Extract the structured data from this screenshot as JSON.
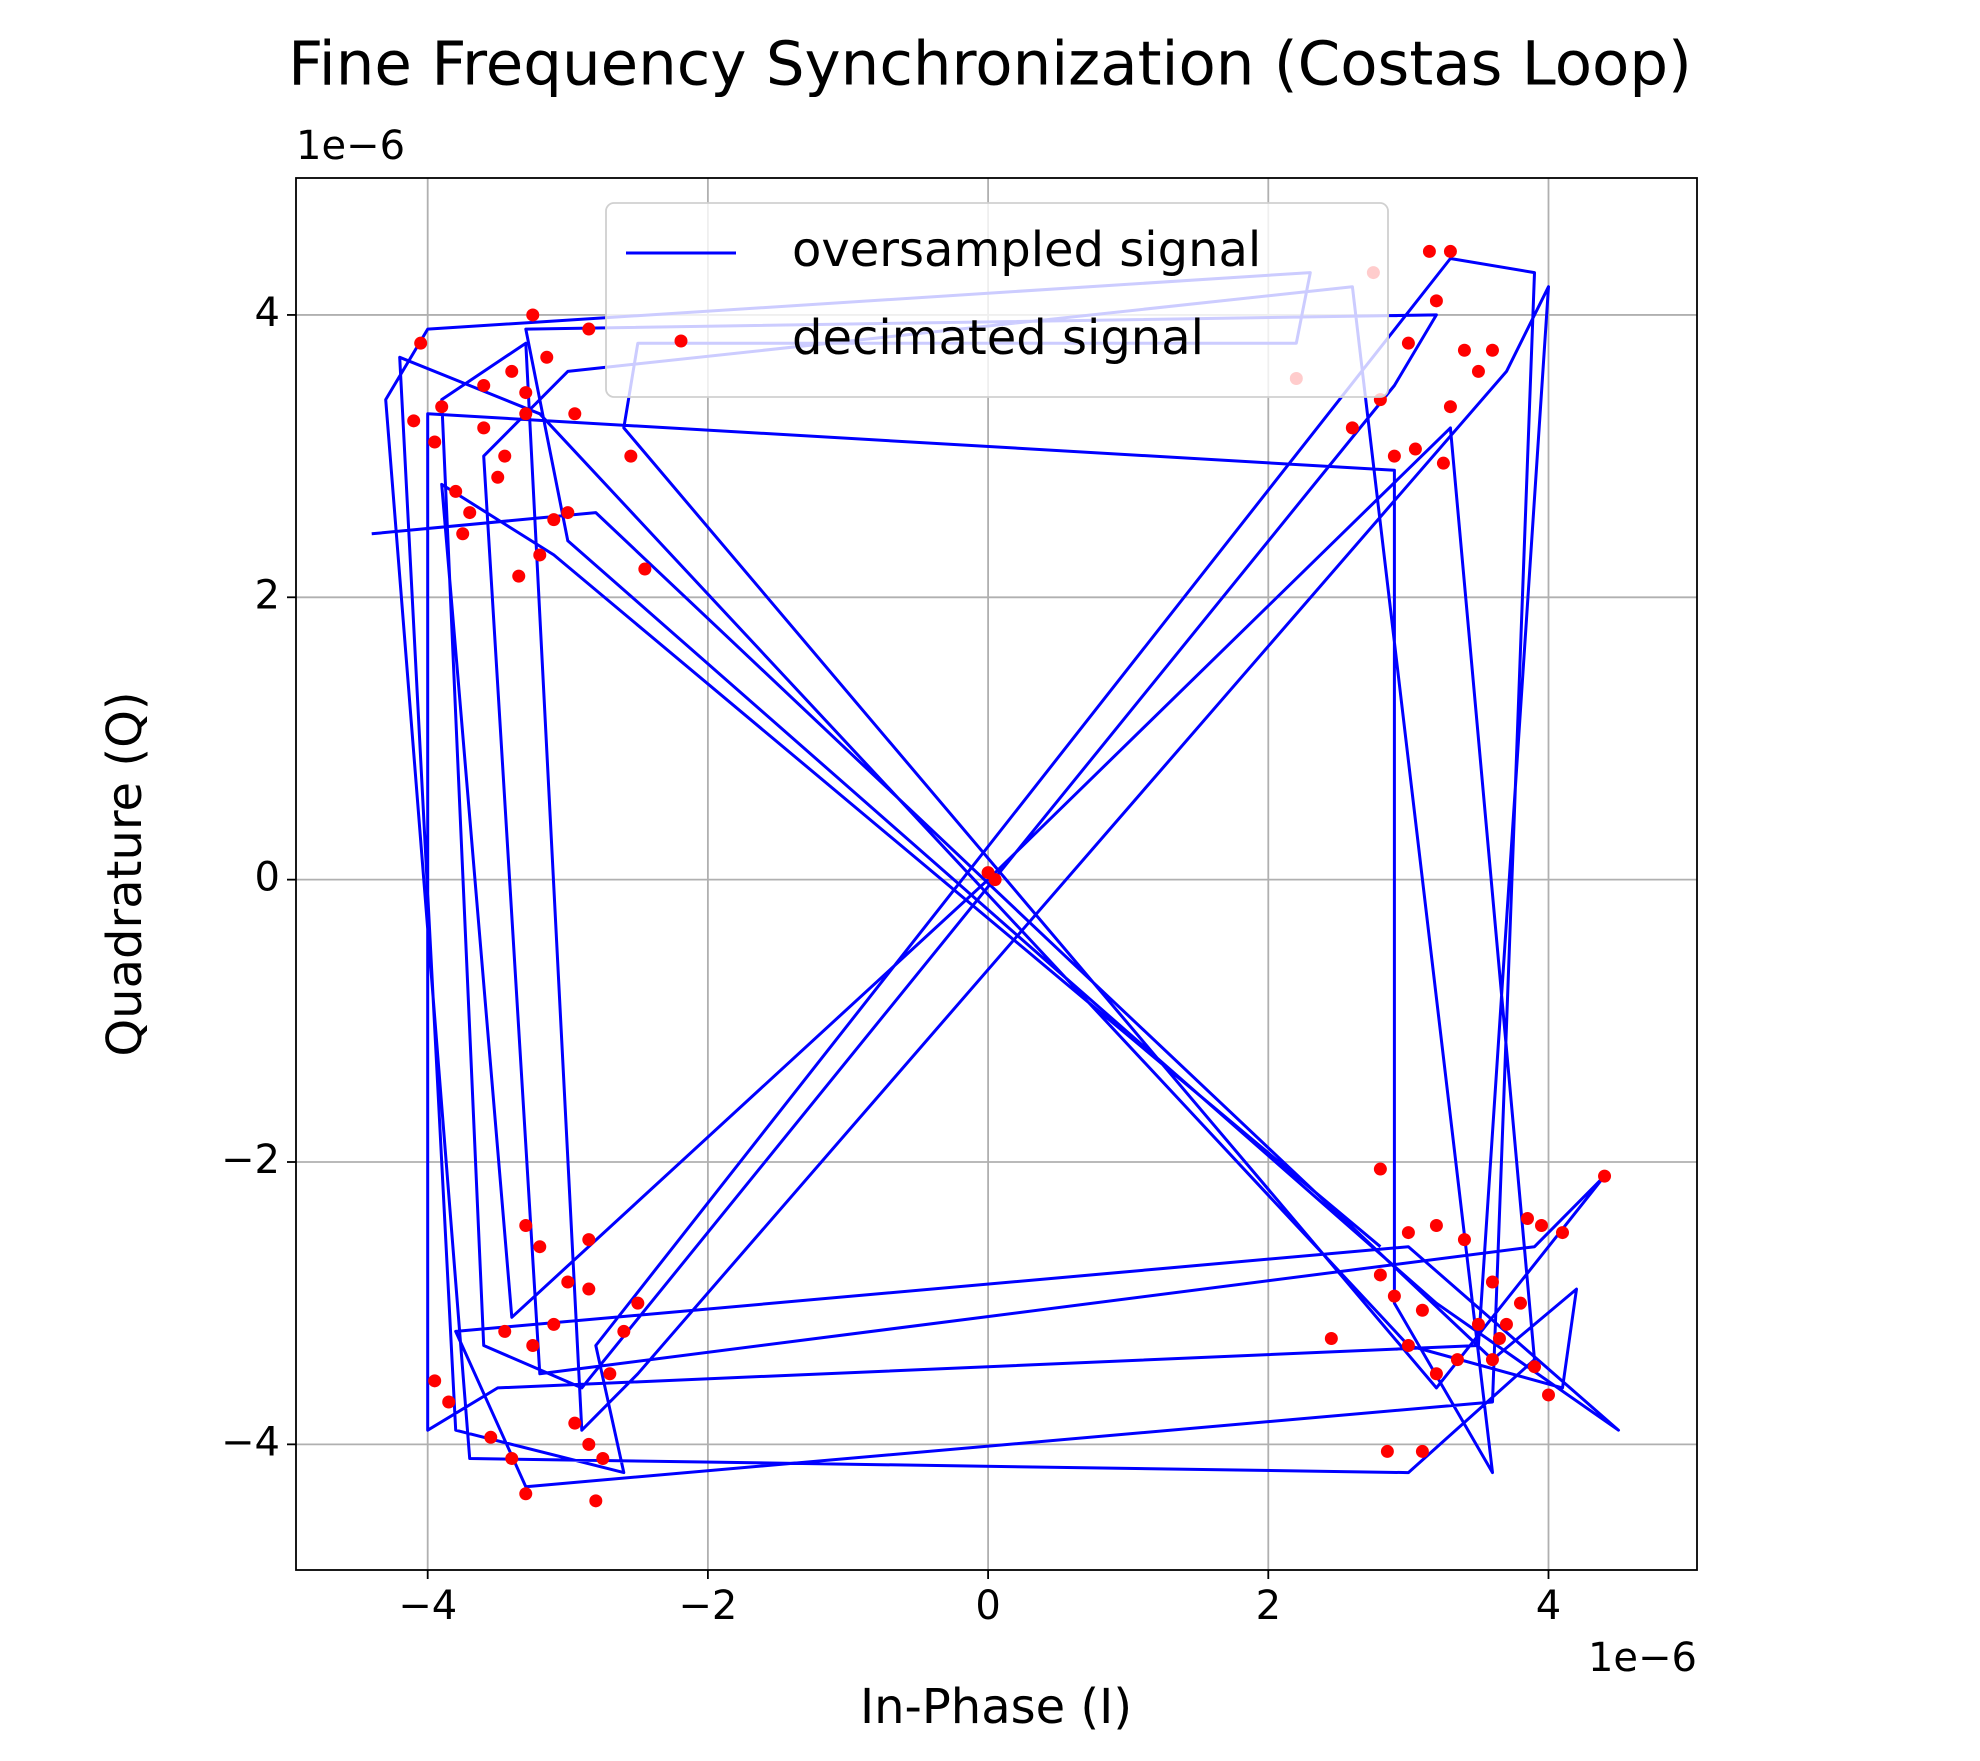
{
  "chart_data": {
    "type": "line",
    "title": "Fine Frequency Synchronization (Costas Loop)",
    "x_label": "In-Phase (I)",
    "y_label": "Quadrature (Q)",
    "x_offset_label": "1e−6",
    "y_offset_label": "1e−6",
    "xlim": [
      -4.94,
      5.06
    ],
    "ylim": [
      -4.89,
      4.97
    ],
    "xticks": [
      {
        "value": -4,
        "label": "−4"
      },
      {
        "value": -2,
        "label": "−2"
      },
      0,
      2,
      4
    ],
    "yticks": [
      {
        "value": -4,
        "label": "−4"
      },
      {
        "value": -2,
        "label": "−2"
      },
      0,
      2,
      4
    ],
    "grid": true,
    "legend": "upper center",
    "series": [
      {
        "name": "oversampled signal",
        "type": "line",
        "color": "#0000ff",
        "x": [
          -4.4,
          -2.8,
          3.6,
          4.2,
          4.1,
          3.0,
          -3.2,
          -4.2,
          -3.8,
          -2.6,
          -2.8,
          3.3,
          3.9,
          3.6,
          -3.3,
          -3.8,
          3.0,
          4.5,
          3.2,
          -3.0,
          -3.3,
          3.2,
          2.9,
          -2.9,
          -3.6,
          -3.9,
          -3.3,
          -2.9,
          -2.5,
          3.7,
          4.0,
          3.5,
          -3.5,
          -4.0,
          -4.0,
          2.9,
          2.9,
          3.6,
          2.6,
          -3.0,
          -3.6,
          -3.2,
          3.9,
          4.4,
          3.2,
          -2.6,
          -2.5,
          2.2,
          2.3,
          -4.0,
          -4.3,
          -3.7,
          3.0,
          3.9,
          3.3,
          0.0,
          -3.4,
          -3.9,
          -3.1,
          2.8
        ],
        "values": [
          2.45,
          2.6,
          -3.4,
          -2.9,
          -3.6,
          -3.3,
          3.3,
          3.7,
          -3.9,
          -4.2,
          -3.3,
          4.4,
          4.3,
          -3.7,
          -4.3,
          -3.2,
          -2.6,
          -3.9,
          -3.0,
          2.4,
          3.9,
          4.0,
          3.5,
          -3.6,
          -3.3,
          3.4,
          3.8,
          -3.9,
          -3.5,
          3.6,
          4.2,
          -3.3,
          -3.6,
          -3.9,
          3.3,
          2.9,
          -3.0,
          -4.2,
          4.2,
          3.6,
          3.0,
          -3.5,
          -2.6,
          -2.1,
          -3.6,
          3.2,
          3.8,
          3.8,
          4.3,
          3.9,
          3.4,
          -4.1,
          -4.2,
          -3.4,
          3.2,
          0.0,
          -3.1,
          2.8,
          2.3,
          -2.6
        ]
      },
      {
        "name": "decimated signal",
        "type": "scatter",
        "color": "#ff0000",
        "x": [
          -4.05,
          -3.9,
          -3.6,
          -3.4,
          -3.3,
          -3.25,
          -3.1,
          -3.0,
          -2.85,
          -2.95,
          -3.7,
          -3.5,
          -3.35,
          -3.2,
          -2.55,
          -2.45,
          -4.1,
          -3.95,
          -3.8,
          -3.15,
          -3.3,
          -3.45,
          -3.6,
          -3.75,
          -2.85,
          -3.0,
          -3.2,
          -3.3,
          -3.45,
          -3.95,
          -3.85,
          -3.55,
          -3.4,
          -2.8,
          -2.95,
          -2.7,
          -2.5,
          -2.6,
          -2.85,
          -3.1,
          -3.25,
          -3.3,
          -2.85,
          -2.75,
          0.0,
          0.05,
          3.15,
          3.3,
          3.2,
          3.0,
          2.8,
          2.75,
          2.6,
          2.9,
          3.4,
          3.6,
          3.5,
          3.3,
          3.25,
          3.05,
          2.2,
          2.8,
          3.0,
          3.2,
          3.4,
          3.6,
          3.7,
          3.85,
          3.95,
          4.1,
          4.4,
          2.8,
          3.1,
          3.35,
          3.5,
          3.65,
          2.45,
          2.9,
          3.0,
          3.2,
          3.6,
          3.8,
          4.0,
          3.9,
          2.85,
          3.1
        ],
        "values": [
          3.8,
          3.35,
          3.5,
          3.6,
          3.3,
          4.0,
          2.55,
          2.6,
          3.9,
          3.3,
          2.6,
          2.85,
          2.15,
          2.3,
          3.0,
          2.2,
          3.25,
          3.1,
          2.75,
          3.7,
          3.45,
          3.0,
          3.2,
          2.45,
          -2.55,
          -2.85,
          -2.6,
          -2.45,
          -3.2,
          -3.55,
          -3.7,
          -3.95,
          -4.1,
          -4.4,
          -3.85,
          -3.5,
          -3.0,
          -3.2,
          -2.9,
          -3.15,
          -3.3,
          -4.35,
          -4.0,
          -4.1,
          0.05,
          0.0,
          4.45,
          4.45,
          4.1,
          3.8,
          3.4,
          4.3,
          3.2,
          3.0,
          3.75,
          3.75,
          3.6,
          3.35,
          2.95,
          3.05,
          3.55,
          -2.05,
          -2.5,
          -2.45,
          -2.55,
          -2.85,
          -3.15,
          -2.4,
          -2.45,
          -2.5,
          -2.1,
          -2.8,
          -3.05,
          -3.4,
          -3.15,
          -3.25,
          -3.25,
          -2.95,
          -3.3,
          -3.5,
          -3.4,
          -3.0,
          -3.65,
          -3.45,
          -4.05,
          -4.05
        ]
      }
    ]
  }
}
